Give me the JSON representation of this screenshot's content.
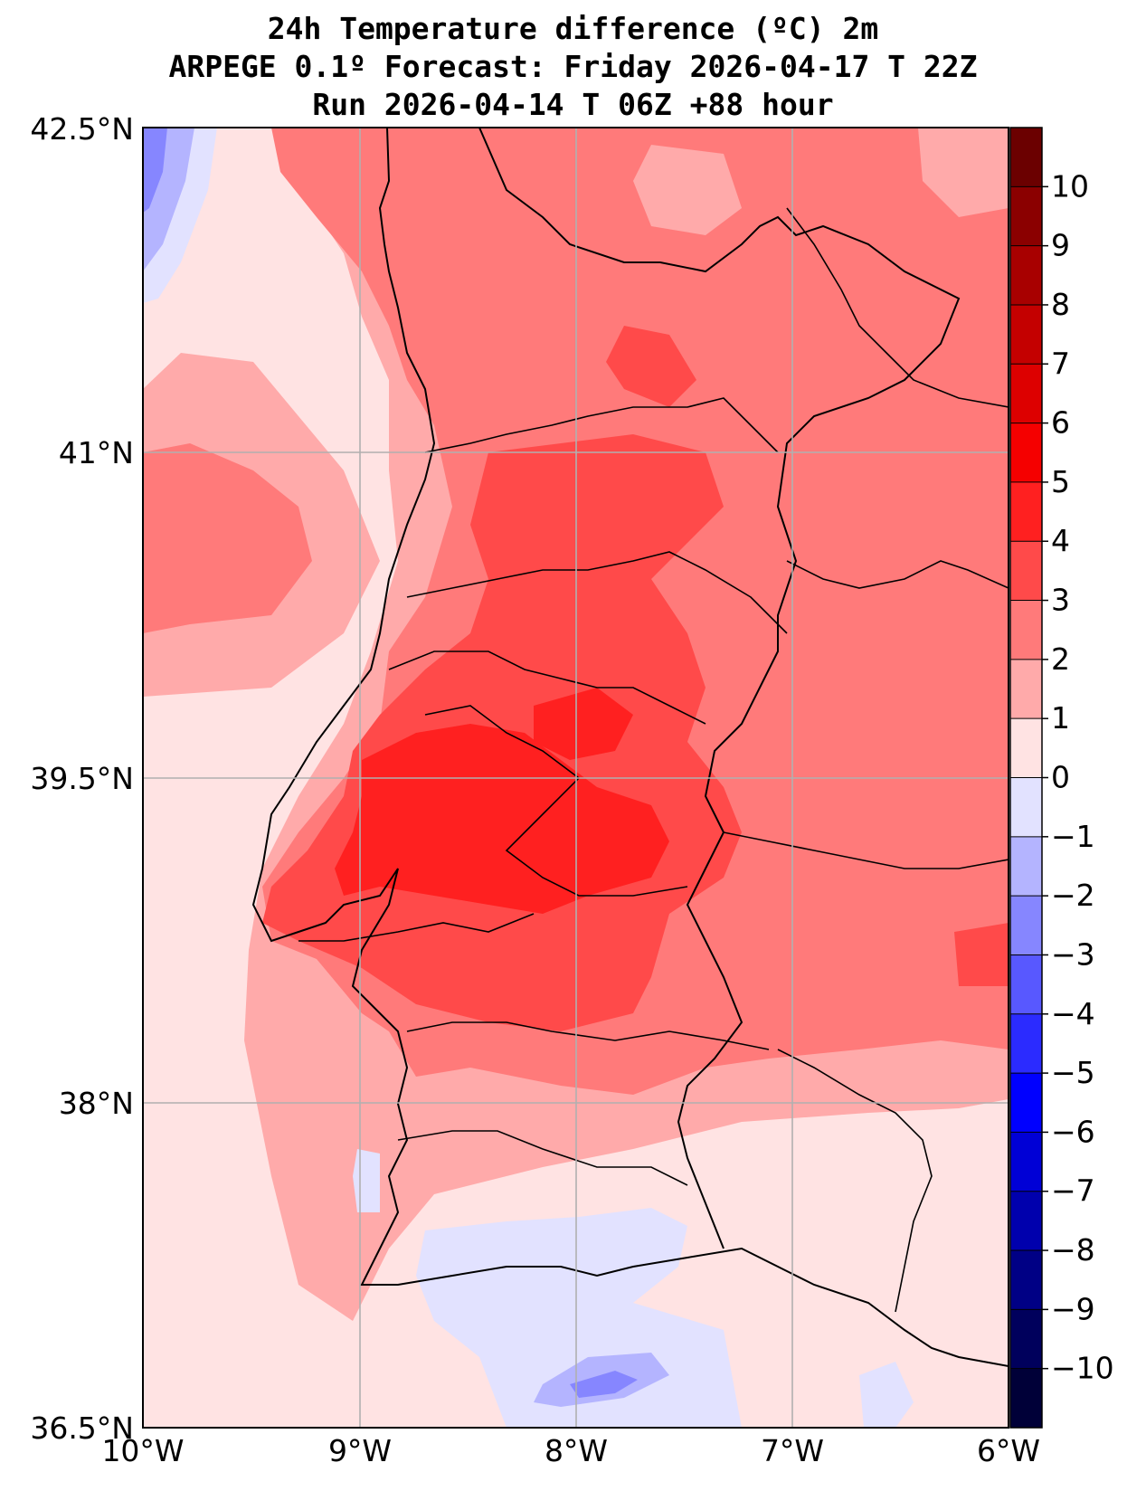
{
  "title": {
    "line1": "24h Temperature difference (ºC) 2m",
    "line2": "ARPEGE 0.1º Forecast: Friday 2026-04-17 T 22Z",
    "line3": "Run 2026-04-14 T 06Z +88 hour"
  },
  "axes": {
    "lat_labels": [
      "42.5°N",
      "41°N",
      "39.5°N",
      "38°N",
      "36.5°N"
    ],
    "lon_labels": [
      "10°W",
      "9°W",
      "8°W",
      "7°W",
      "6°W"
    ]
  },
  "colorbar": {
    "ticks": [
      "10",
      "9",
      "8",
      "7",
      "6",
      "5",
      "4",
      "3",
      "2",
      "1",
      "0",
      "−1",
      "−2",
      "−3",
      "−4",
      "−5",
      "−6",
      "−7",
      "−8",
      "−9",
      "−10"
    ],
    "colors_top_to_bottom": [
      "#6b0000",
      "#8b0000",
      "#a80000",
      "#c40000",
      "#dd0000",
      "#f50000",
      "#ff2020",
      "#ff4a4a",
      "#ff7a7a",
      "#ffaaaa",
      "#ffe3e3",
      "#e2e2ff",
      "#b4b4ff",
      "#8686ff",
      "#5858ff",
      "#2b2bff",
      "#0000ff",
      "#0000d6",
      "#0000ad",
      "#000085",
      "#00005c",
      "#000038"
    ]
  }
}
